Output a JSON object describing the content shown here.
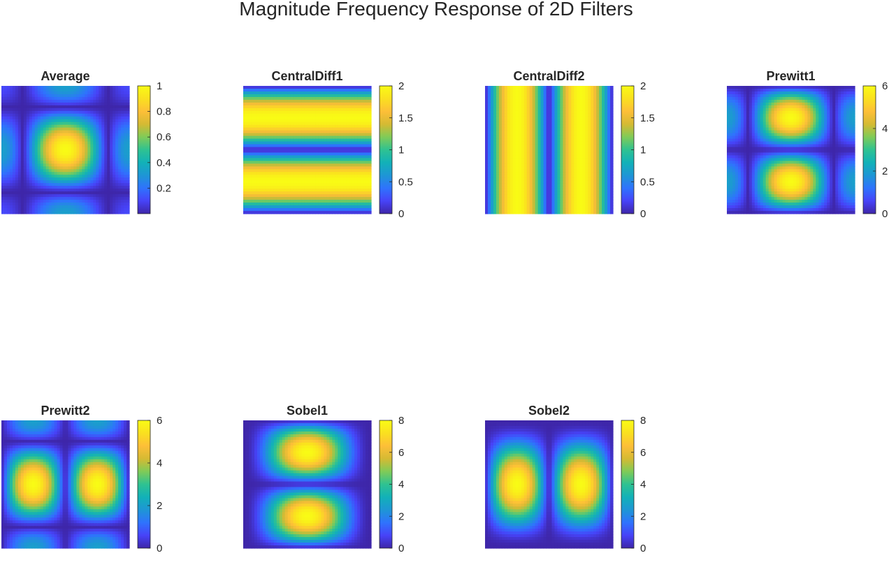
{
  "title": "Magnitude Frequency Response of 2D Filters",
  "colormap": [
    "#3e26a8",
    "#4743f8",
    "#2f73fd",
    "#1e96d5",
    "#12b1b8",
    "#2fc291",
    "#80cb58",
    "#d5ba33",
    "#fdbf38",
    "#fae01f",
    "#f9fb15"
  ],
  "chart_data": [
    {
      "type": "heatmap",
      "title": "Average",
      "filter": "average",
      "clim": [
        0,
        1
      ],
      "colorbar_ticks": [
        0.2,
        0.4,
        0.6,
        0.8,
        1
      ],
      "colorbar_tick_labels": [
        "0.2",
        "0.4",
        "0.6",
        "0.8",
        "1"
      ]
    },
    {
      "type": "heatmap",
      "title": "CentralDiff1",
      "filter": "centraldiff1",
      "clim": [
        0,
        2
      ],
      "colorbar_ticks": [
        0,
        0.5,
        1,
        1.5,
        2
      ],
      "colorbar_tick_labels": [
        "0",
        "0.5",
        "1",
        "1.5",
        "2"
      ]
    },
    {
      "type": "heatmap",
      "title": "CentralDiff2",
      "filter": "centraldiff2",
      "clim": [
        0,
        2
      ],
      "colorbar_ticks": [
        0,
        0.5,
        1,
        1.5,
        2
      ],
      "colorbar_tick_labels": [
        "0",
        "0.5",
        "1",
        "1.5",
        "2"
      ]
    },
    {
      "type": "heatmap",
      "title": "Prewitt1",
      "filter": "prewitt1",
      "clim": [
        0,
        6
      ],
      "colorbar_ticks": [
        0,
        2,
        4,
        6
      ],
      "colorbar_tick_labels": [
        "0",
        "2",
        "4",
        "6"
      ]
    },
    {
      "type": "heatmap",
      "title": "Prewitt2",
      "filter": "prewitt2",
      "clim": [
        0,
        6
      ],
      "colorbar_ticks": [
        0,
        2,
        4,
        6
      ],
      "colorbar_tick_labels": [
        "0",
        "2",
        "4",
        "6"
      ]
    },
    {
      "type": "heatmap",
      "title": "Sobel1",
      "filter": "sobel1",
      "clim": [
        0,
        8
      ],
      "colorbar_ticks": [
        0,
        2,
        4,
        6,
        8
      ],
      "colorbar_tick_labels": [
        "0",
        "2",
        "4",
        "6",
        "8"
      ]
    },
    {
      "type": "heatmap",
      "title": "Sobel2",
      "filter": "sobel2",
      "clim": [
        0,
        8
      ],
      "colorbar_ticks": [
        0,
        2,
        4,
        6,
        8
      ],
      "colorbar_tick_labels": [
        "0",
        "2",
        "4",
        "6",
        "8"
      ]
    }
  ]
}
